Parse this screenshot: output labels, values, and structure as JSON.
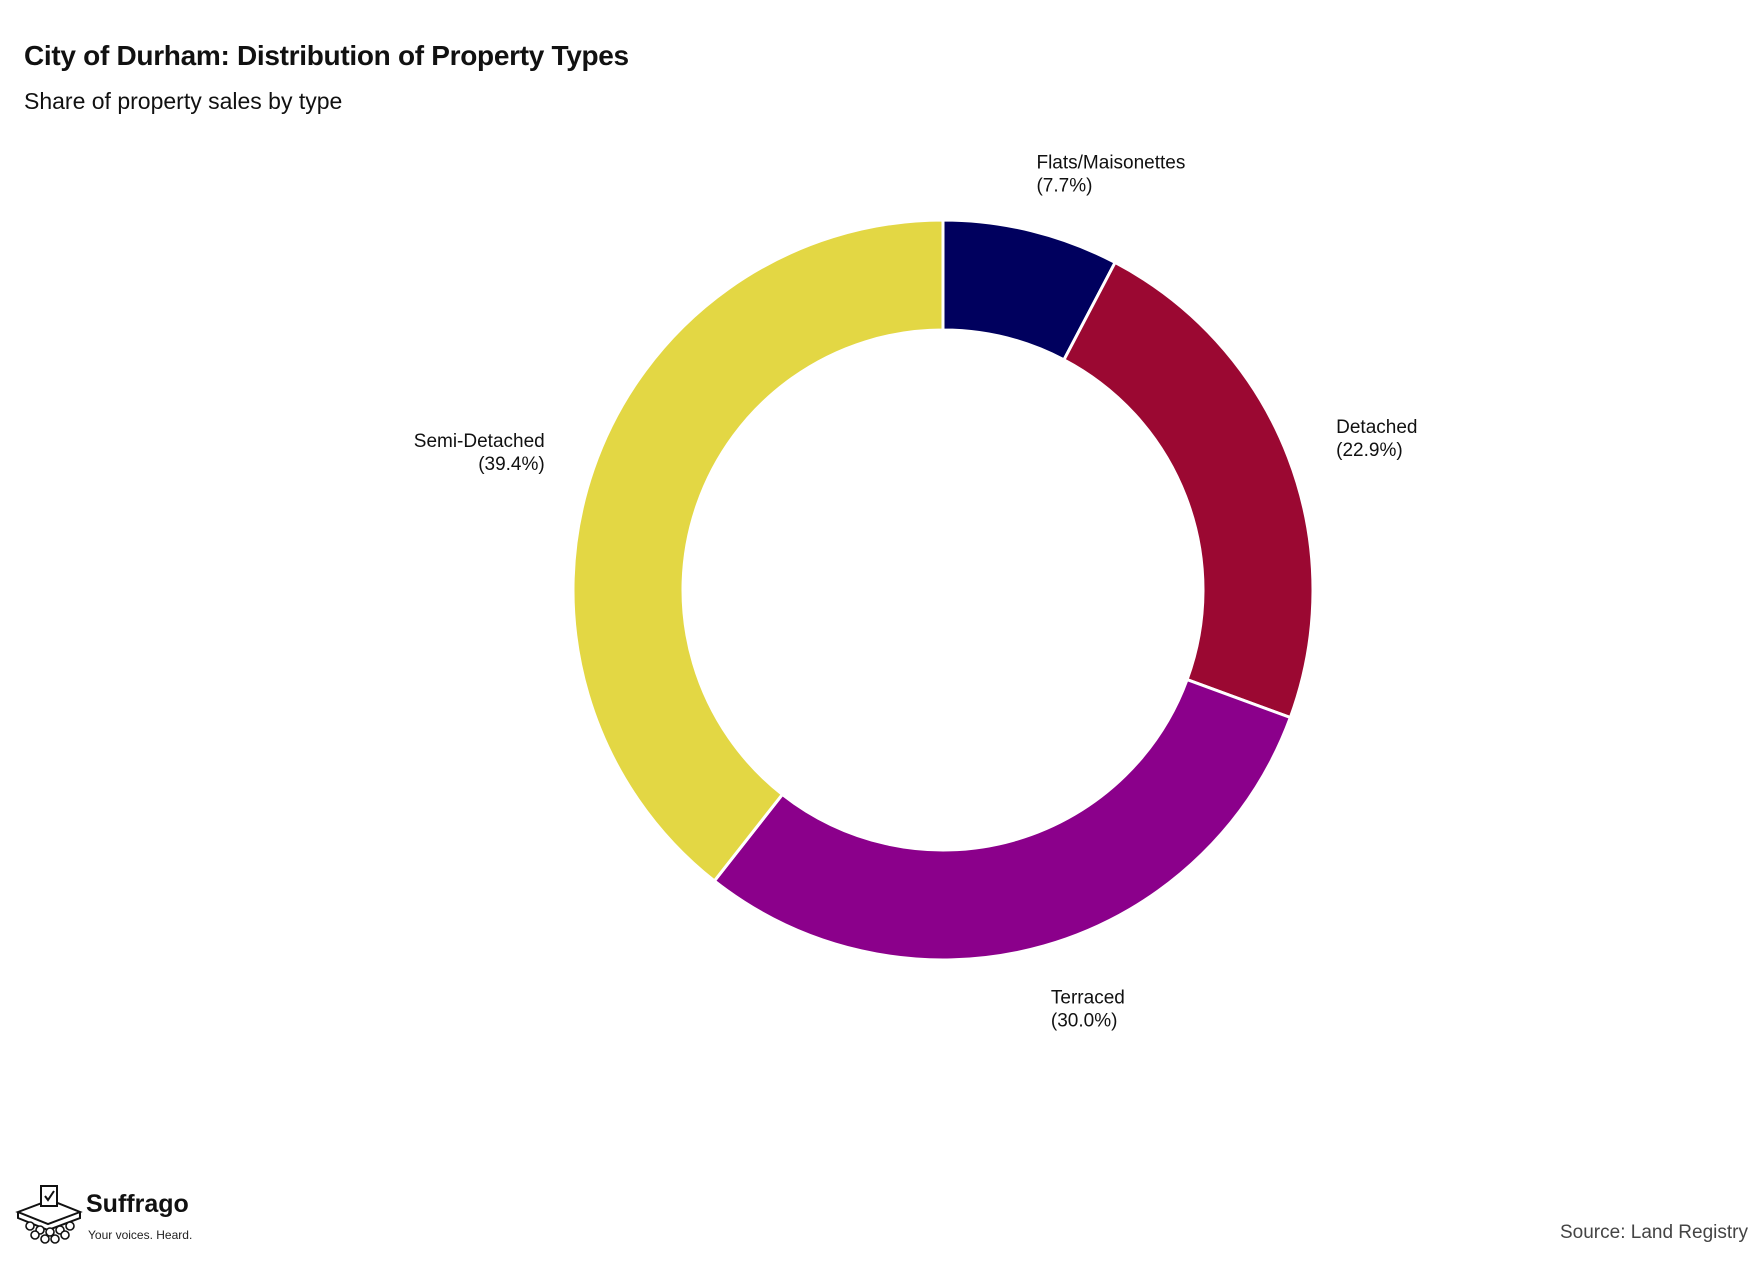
{
  "header": {
    "title": "City of Durham: Distribution of Property Types",
    "subtitle": "Share of property sales by type"
  },
  "chart_data": {
    "type": "pie",
    "variant": "donut",
    "title": "City of Durham: Distribution of Property Types",
    "subtitle": "Share of property sales by type",
    "start_angle": "12 o'clock, clockwise",
    "slices": [
      {
        "label": "Flats/Maisonettes",
        "pct_label": "(7.7%)",
        "value": 7.7,
        "color": "#00005e"
      },
      {
        "label": "Detached",
        "pct_label": "(22.9%)",
        "value": 22.9,
        "color": "#9b0832"
      },
      {
        "label": "Terraced",
        "pct_label": "(30.0%)",
        "value": 30.0,
        "color": "#8b008b"
      },
      {
        "label": "Semi-Detached",
        "pct_label": "(39.4%)",
        "value": 39.4,
        "color": "#e3d744"
      }
    ]
  },
  "footer": {
    "brand_name": "Suffrago",
    "brand_tagline": "Your voices. Heard.",
    "source": "Source: Land Registry",
    "logo_icon": "ballot-box-icon"
  }
}
